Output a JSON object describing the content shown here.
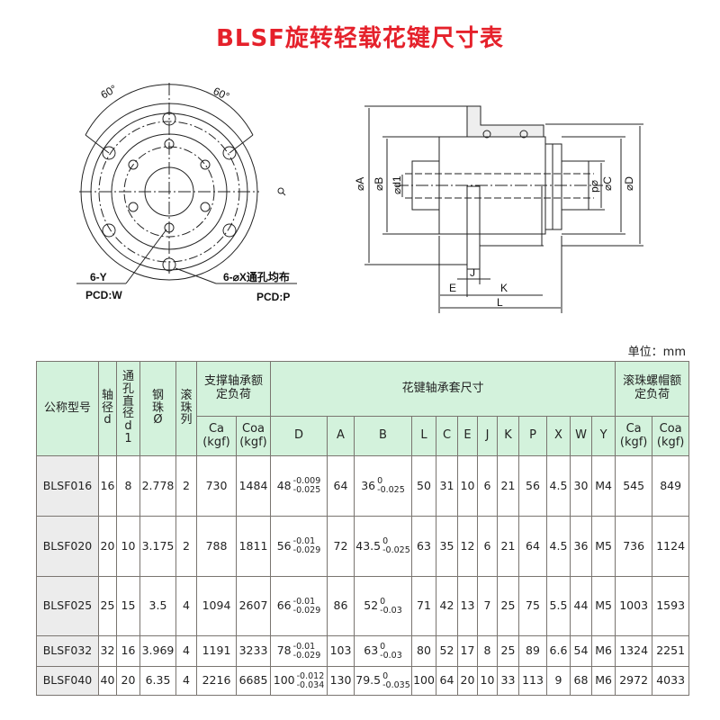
{
  "title": "BLSF旋转轻载花键尺寸表",
  "drawing": {
    "front_view": {
      "angle_left": "60°",
      "angle_right": "60°",
      "label_y": "6-Y",
      "label_w": "PCD:W",
      "label_x": "6-⌀X通孔均布",
      "label_p": "PCD:P"
    },
    "side_view": {
      "phi_a": "⌀A",
      "phi_b": "⌀B",
      "phi_d1": "⌀d1",
      "phi_d": "⌀d",
      "phi_c": "⌀C",
      "phi_D": "⌀D",
      "j": "J",
      "e": "E",
      "k": "K",
      "l": "L"
    },
    "zoom_icon": "magnifier-icon"
  },
  "unit": "单位：mm",
  "table": {
    "headers": {
      "model": "公称型号",
      "shaft_d": "轴径d",
      "hole_d1": "通孔直径d1",
      "ball": "钢珠Ø",
      "rows": "滚珠列",
      "support_load": "支撑轴承额定负荷",
      "sleeve_dims": "花键轴承套尺寸",
      "nut_load": "滚珠螺帽额定负荷",
      "ca": "Ca",
      "coa": "Coa",
      "kgf": "(kgf)",
      "cols": [
        "D",
        "A",
        "B",
        "L",
        "C",
        "E",
        "J",
        "K",
        "P",
        "X",
        "W",
        "Y"
      ]
    },
    "rows": [
      {
        "model": "BLSF016",
        "d": "16",
        "d1": "8",
        "ball": "2.778",
        "n": "2",
        "ca": "730",
        "coa": "1484",
        "D": {
          "base": "48",
          "up": "-0.009",
          "low": "-0.025"
        },
        "A": "64",
        "B": {
          "base": "36",
          "up": "0",
          "low": "-0.025"
        },
        "L": "50",
        "C": "31",
        "E": "10",
        "J": "6",
        "K": "21",
        "P": "56",
        "X": "4.5",
        "W": "30",
        "Y": "M4",
        "nca": "545",
        "ncoa": "849"
      },
      {
        "model": "BLSF020",
        "d": "20",
        "d1": "10",
        "ball": "3.175",
        "n": "2",
        "ca": "788",
        "coa": "1811",
        "D": {
          "base": "56",
          "up": "-0.01",
          "low": "-0.029"
        },
        "A": "72",
        "B": {
          "base": "43.5",
          "up": "0",
          "low": "-0.025"
        },
        "L": "63",
        "C": "35",
        "E": "12",
        "J": "6",
        "K": "21",
        "P": "64",
        "X": "4.5",
        "W": "36",
        "Y": "M5",
        "nca": "736",
        "ncoa": "1124"
      },
      {
        "model": "BLSF025",
        "d": "25",
        "d1": "15",
        "ball": "3.5",
        "n": "4",
        "ca": "1094",
        "coa": "2607",
        "D": {
          "base": "66",
          "up": "-0.01",
          "low": "-0.029"
        },
        "A": "86",
        "B": {
          "base": "52",
          "up": "0",
          "low": "-0.03"
        },
        "L": "71",
        "C": "42",
        "E": "13",
        "J": "7",
        "K": "25",
        "P": "75",
        "X": "5.5",
        "W": "44",
        "Y": "M5",
        "nca": "1003",
        "ncoa": "1593"
      },
      {
        "model": "BLSF032",
        "d": "32",
        "d1": "16",
        "ball": "3.969",
        "n": "4",
        "ca": "1191",
        "coa": "3233",
        "D": {
          "base": "78",
          "up": "-0.01",
          "low": "-0.029"
        },
        "A": "103",
        "B": {
          "base": "63",
          "up": "0",
          "low": "-0.03"
        },
        "L": "80",
        "C": "52",
        "E": "17",
        "J": "8",
        "K": "25",
        "P": "89",
        "X": "6.6",
        "W": "54",
        "Y": "M6",
        "nca": "1324",
        "ncoa": "2251"
      },
      {
        "model": "BLSF040",
        "d": "40",
        "d1": "20",
        "ball": "6.35",
        "n": "4",
        "ca": "2216",
        "coa": "6685",
        "D": {
          "base": "100",
          "up": "-0.012",
          "low": "-0.034"
        },
        "A": "130",
        "B": {
          "base": "79.5",
          "up": "0",
          "low": "-0.035"
        },
        "L": "100",
        "C": "64",
        "E": "20",
        "J": "10",
        "K": "33",
        "P": "113",
        "X": "9",
        "W": "68",
        "Y": "M6",
        "nca": "2972",
        "ncoa": "4033"
      }
    ]
  },
  "colors": {
    "title": "#e5212b",
    "header_bg": "#d3f2dc",
    "model_bg": "#ececec"
  }
}
